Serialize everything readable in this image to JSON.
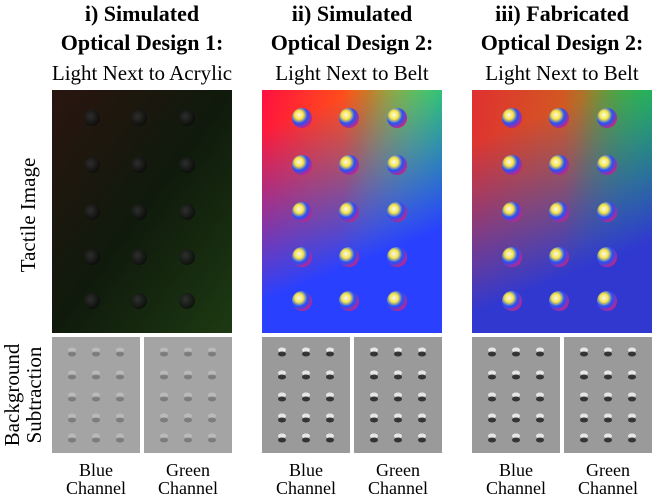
{
  "row_labels": {
    "tactile": "Tactile Image",
    "background": [
      "Background",
      "Subtraction"
    ]
  },
  "columns": [
    {
      "title": "i) Simulated",
      "subtitle": "Optical Design 1:",
      "caption": "Light Next to Acrylic",
      "channels": [
        [
          "Blue",
          "Channel"
        ],
        [
          "Green",
          "Channel"
        ]
      ]
    },
    {
      "title": "ii) Simulated",
      "subtitle": "Optical Design 2:",
      "caption": "Light Next to Belt",
      "channels": [
        [
          "Blue",
          "Channel"
        ],
        [
          "Green",
          "Channel"
        ]
      ]
    },
    {
      "title": "iii) Fabricated",
      "subtitle": "Optical Design 2:",
      "caption": "Light Next to Belt",
      "channels": [
        [
          "Blue",
          "Channel"
        ],
        [
          "Green",
          "Channel"
        ]
      ]
    }
  ]
}
